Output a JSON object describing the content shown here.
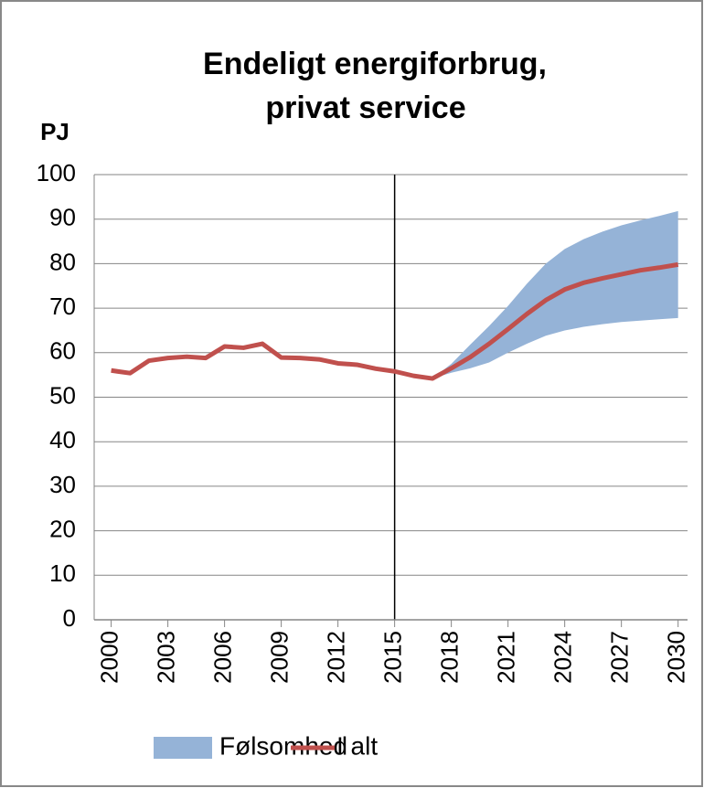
{
  "chart_data": {
    "type": "line",
    "title": [
      "Endeligt energiforbrug,",
      "privat service"
    ],
    "y_label": "PJ",
    "x": [
      2000,
      2001,
      2002,
      2003,
      2004,
      2005,
      2006,
      2007,
      2008,
      2009,
      2010,
      2011,
      2012,
      2013,
      2014,
      2015,
      2016,
      2017,
      2018,
      2019,
      2020,
      2021,
      2022,
      2023,
      2024,
      2025,
      2026,
      2027,
      2028,
      2029,
      2030
    ],
    "xlim": [
      1999.1,
      2030.5
    ],
    "xticks": [
      2000,
      2003,
      2006,
      2009,
      2012,
      2015,
      2018,
      2021,
      2024,
      2027,
      2030
    ],
    "ylim": [
      0,
      100
    ],
    "yticks": [
      0,
      10,
      20,
      30,
      40,
      50,
      60,
      70,
      80,
      90,
      100
    ],
    "grid": true,
    "vline_x": 2015,
    "series": [
      {
        "name": "Følsomhed",
        "color": "#95b3d7",
        "kind": "band",
        "lower": [
          null,
          null,
          null,
          null,
          null,
          null,
          null,
          null,
          null,
          null,
          null,
          null,
          null,
          null,
          null,
          null,
          null,
          54.2,
          55.5,
          56.5,
          57.8,
          60,
          62,
          63.8,
          65,
          65.8,
          66.4,
          66.9,
          67.2,
          67.5,
          67.8
        ],
        "upper": [
          null,
          null,
          null,
          null,
          null,
          null,
          null,
          null,
          null,
          null,
          null,
          null,
          null,
          null,
          null,
          null,
          null,
          54.2,
          57.5,
          61.8,
          66,
          70.5,
          75.5,
          80,
          83.3,
          85.5,
          87.2,
          88.6,
          89.7,
          90.7,
          91.8
        ]
      },
      {
        "name": "I alt",
        "color": "#c0504d",
        "kind": "line",
        "values": [
          56,
          55.4,
          58.2,
          58.8,
          59.1,
          58.8,
          61.4,
          61.1,
          62,
          58.9,
          58.8,
          58.5,
          57.6,
          57.3,
          56.4,
          55.8,
          54.8,
          54.2,
          56.5,
          59,
          62,
          65.3,
          68.7,
          71.8,
          74.2,
          75.7,
          76.7,
          77.6,
          78.5,
          79.1,
          79.8
        ]
      }
    ]
  }
}
